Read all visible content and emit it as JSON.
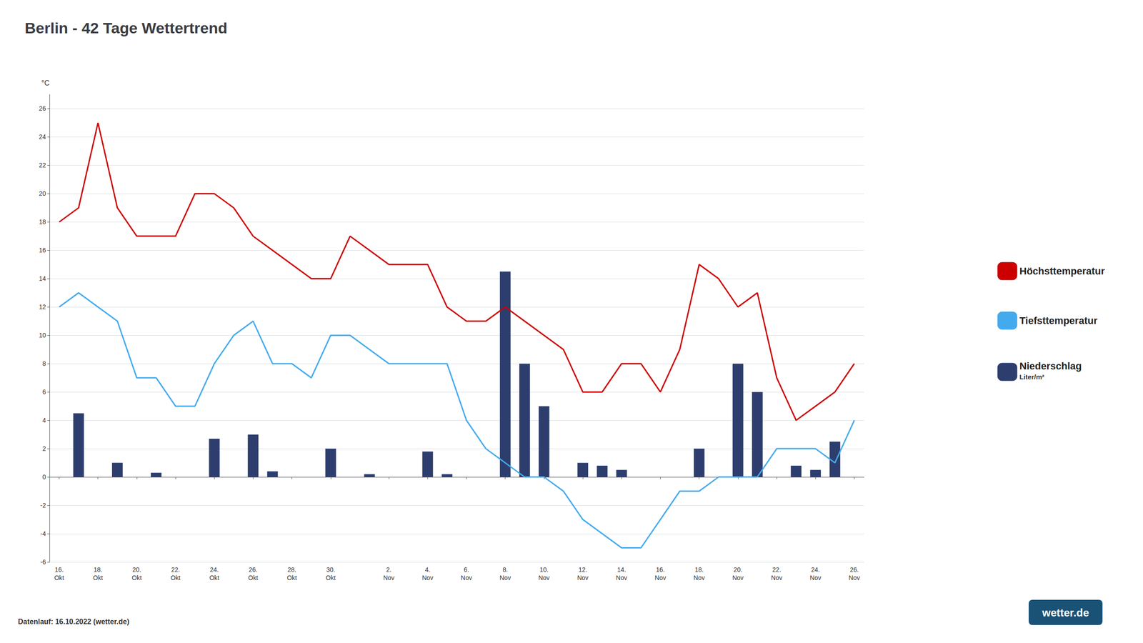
{
  "chart_data": {
    "type": "line",
    "title": "Berlin - 42 Tage Wettertrend",
    "ylabel": "°C",
    "categories": [
      "16.\nOkt",
      null,
      "18.\nOkt",
      null,
      "20.\nOkt",
      null,
      "22.\nOkt",
      null,
      "24.\nOkt",
      null,
      "26.\nOkt",
      null,
      "28.\nOkt",
      null,
      "30.\nOkt",
      null,
      null,
      "2.\nNov",
      null,
      "4.\nNov",
      null,
      "6.\nNov",
      null,
      "8.\nNov",
      null,
      "10.\nNov",
      null,
      "12.\nNov",
      null,
      "14.\nNov",
      null,
      "16.\nNov",
      null,
      "18.\nNov",
      null,
      "20.\nNov",
      null,
      "22.\nNov",
      null,
      "24.\nNov",
      null,
      "26.\nNov"
    ],
    "series": [
      {
        "name": "Höchsttemperatur",
        "type": "line",
        "color": "#cc0000",
        "values": [
          18,
          19,
          25,
          19,
          17,
          17,
          17,
          20,
          20,
          19,
          17,
          16,
          15,
          14,
          14,
          17,
          16,
          15,
          15,
          15,
          12,
          11,
          11,
          12,
          11,
          10,
          9,
          6,
          6,
          8,
          8,
          6,
          9,
          15,
          14,
          12,
          13,
          7,
          4,
          5,
          6,
          8
        ]
      },
      {
        "name": "Tiefsttemperatur",
        "type": "line",
        "color": "#44aaee",
        "values": [
          12,
          13,
          12,
          11,
          7,
          7,
          5,
          5,
          8,
          10,
          11,
          8,
          8,
          7,
          10,
          10,
          9,
          8,
          8,
          8,
          8,
          4,
          2,
          1,
          0,
          0,
          -1,
          -3,
          -4,
          -5,
          -5,
          -3,
          -1,
          -1,
          0,
          0,
          0,
          2,
          2,
          2,
          1,
          4
        ]
      },
      {
        "name": "Niederschlag",
        "type": "bar",
        "color": "#2d3e6e",
        "values": [
          0,
          4.5,
          0,
          1.0,
          0,
          0.3,
          0,
          0,
          2.7,
          0,
          3.0,
          0.4,
          0,
          0,
          2.0,
          0,
          0.2,
          0,
          0,
          1.8,
          0.2,
          0,
          0,
          14.5,
          8.0,
          5.0,
          0,
          1.0,
          0.8,
          0.5,
          0,
          0,
          0,
          2.0,
          0,
          8.0,
          6.0,
          0,
          0.8,
          0.5,
          2.5,
          0
        ]
      }
    ],
    "ylim": [
      -6,
      27
    ],
    "yticks": [
      -6,
      -4,
      -2,
      0,
      2,
      4,
      6,
      8,
      10,
      12,
      14,
      16,
      18,
      20,
      22,
      24,
      26
    ],
    "grid": true,
    "legend": "right",
    "annotations": [
      "Liter/m²",
      "Datenlauf: 16.10.2022 (wetter.de)",
      "wetter.de"
    ]
  }
}
